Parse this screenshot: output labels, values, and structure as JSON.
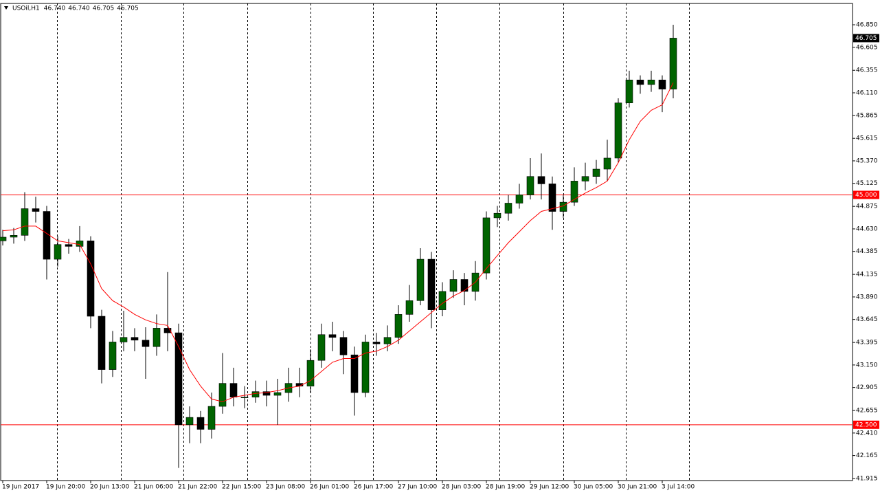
{
  "header": {
    "symbol": "USOil,H1",
    "quote": [
      "46.740",
      "46.740",
      "46.705",
      "46.705"
    ]
  },
  "chart_data": {
    "type": "candlestick",
    "up_color": "#006400",
    "down_color": "#000000",
    "ma_color": "#ff0000",
    "level_color": "#ff0000",
    "xlim": [
      -0.75,
      309.25
    ],
    "ylim": [
      41.893,
      47.082
    ],
    "yticks": [
      {
        "value": 46.85,
        "label": "46.850"
      },
      {
        "value": 46.605,
        "label": "46.605"
      },
      {
        "value": 46.355,
        "label": "46.355"
      },
      {
        "value": 46.11,
        "label": "46.110"
      },
      {
        "value": 45.865,
        "label": "45.865"
      },
      {
        "value": 45.615,
        "label": "45.615"
      },
      {
        "value": 45.37,
        "label": "45.370"
      },
      {
        "value": 45.125,
        "label": "45.125"
      },
      {
        "value": 44.875,
        "label": "44.875"
      },
      {
        "value": 44.63,
        "label": "44.630"
      },
      {
        "value": 44.385,
        "label": "44.385"
      },
      {
        "value": 44.135,
        "label": "44.135"
      },
      {
        "value": 43.89,
        "label": "43.890"
      },
      {
        "value": 43.645,
        "label": "43.645"
      },
      {
        "value": 43.395,
        "label": "43.395"
      },
      {
        "value": 43.15,
        "label": "43.150"
      },
      {
        "value": 42.905,
        "label": "42.905"
      },
      {
        "value": 42.655,
        "label": "42.655"
      },
      {
        "value": 42.41,
        "label": "42.410"
      },
      {
        "value": 42.165,
        "label": "42.165"
      },
      {
        "value": 41.915,
        "label": "41.915"
      }
    ],
    "xticks": [
      {
        "value": 0,
        "label": "19 Jun 2017"
      },
      {
        "value": 16,
        "label": "19 Jun 20:00"
      },
      {
        "value": 32,
        "label": "20 Jun 13:00"
      },
      {
        "value": 48,
        "label": "21 Jun 06:00"
      },
      {
        "value": 64,
        "label": "21 Jun 22:00"
      },
      {
        "value": 80,
        "label": "22 Jun 15:00"
      },
      {
        "value": 96,
        "label": "23 Jun 08:00"
      },
      {
        "value": 112,
        "label": "26 Jun 01:00"
      },
      {
        "value": 128,
        "label": "26 Jun 17:00"
      },
      {
        "value": 144,
        "label": "27 Jun 10:00"
      },
      {
        "value": 160,
        "label": "28 Jun 03:00"
      },
      {
        "value": 176,
        "label": "28 Jun 19:00"
      },
      {
        "value": 192,
        "label": "29 Jun 12:00"
      },
      {
        "value": 208,
        "label": "30 Jun 05:00"
      },
      {
        "value": 224,
        "label": "30 Jun 21:00"
      },
      {
        "value": 240,
        "label": "3 Jul 14:00"
      }
    ],
    "separators": [
      19.75,
      43,
      65.75,
      89,
      112,
      134.75,
      157.75,
      180.75,
      204,
      226.75,
      249.75
    ],
    "x": [
      0,
      4,
      8,
      12,
      16,
      20,
      24,
      28,
      32,
      36,
      40,
      44,
      48,
      52,
      56,
      60,
      64,
      68,
      72,
      76,
      80,
      84,
      88,
      92,
      96,
      100,
      104,
      108,
      112,
      116,
      120,
      124,
      128,
      132,
      136,
      140,
      144,
      148,
      152,
      156,
      160,
      164,
      168,
      172,
      176,
      180,
      184,
      188,
      192,
      196,
      200,
      204,
      208,
      212,
      216,
      220,
      224,
      228,
      232,
      236,
      240,
      244
    ],
    "open": [
      44.5,
      44.54,
      44.56,
      44.85,
      44.82,
      44.3,
      44.46,
      44.44,
      44.5,
      43.68,
      43.1,
      43.4,
      43.45,
      43.42,
      43.35,
      43.55,
      43.5,
      42.5,
      42.58,
      42.45,
      42.7,
      42.95,
      42.8,
      42.8,
      42.86,
      42.82,
      42.85,
      42.95,
      42.92,
      43.2,
      43.48,
      43.45,
      43.26,
      42.85,
      43.4,
      43.38,
      43.45,
      43.7,
      43.85,
      44.3,
      43.75,
      43.95,
      44.08,
      43.95,
      44.15,
      44.75,
      44.8,
      44.91,
      45.0,
      45.2,
      45.12,
      44.82,
      44.92,
      45.15,
      45.2,
      45.28,
      45.4,
      46.0,
      46.25,
      46.2,
      46.25,
      46.15
    ],
    "high": [
      44.62,
      44.64,
      45.03,
      44.98,
      44.88,
      44.55,
      44.52,
      44.66,
      44.55,
      43.75,
      43.52,
      43.74,
      43.55,
      43.56,
      43.7,
      44.16,
      43.6,
      42.7,
      42.65,
      42.85,
      43.28,
      43.12,
      42.92,
      42.98,
      42.98,
      43.0,
      43.12,
      43.12,
      43.32,
      43.6,
      43.62,
      43.52,
      43.35,
      43.48,
      43.5,
      43.58,
      43.8,
      44.02,
      44.42,
      44.38,
      44.05,
      44.18,
      44.15,
      44.28,
      44.82,
      44.88,
      45.0,
      45.12,
      45.4,
      45.45,
      45.2,
      45.0,
      45.3,
      45.35,
      45.38,
      45.6,
      46.05,
      46.35,
      46.3,
      46.35,
      46.3,
      46.85
    ],
    "low": [
      44.45,
      44.47,
      44.5,
      44.7,
      44.08,
      44.22,
      44.36,
      44.38,
      43.55,
      42.95,
      43.02,
      43.3,
      43.3,
      43.0,
      43.25,
      43.3,
      42.03,
      42.3,
      42.3,
      42.35,
      42.62,
      42.7,
      42.68,
      42.74,
      42.7,
      42.5,
      42.75,
      42.8,
      42.85,
      43.12,
      43.3,
      43.05,
      42.6,
      42.8,
      43.25,
      43.3,
      43.38,
      43.62,
      43.8,
      43.55,
      43.68,
      43.88,
      43.8,
      43.85,
      44.08,
      44.65,
      44.72,
      44.85,
      44.95,
      44.95,
      44.62,
      44.75,
      44.88,
      45.05,
      45.12,
      45.15,
      45.35,
      45.95,
      46.1,
      46.12,
      45.9,
      46.05
    ],
    "close": [
      44.54,
      44.56,
      44.85,
      44.82,
      44.3,
      44.46,
      44.44,
      44.5,
      43.68,
      43.1,
      43.4,
      43.45,
      43.42,
      43.35,
      43.55,
      43.5,
      42.5,
      42.58,
      42.45,
      42.7,
      42.95,
      42.8,
      42.8,
      42.86,
      42.82,
      42.85,
      42.95,
      42.92,
      43.2,
      43.48,
      43.45,
      43.26,
      42.85,
      43.4,
      43.38,
      43.45,
      43.7,
      43.85,
      44.3,
      43.75,
      43.95,
      44.08,
      43.95,
      44.15,
      44.75,
      44.8,
      44.91,
      45.0,
      45.2,
      45.12,
      44.82,
      44.92,
      45.15,
      45.2,
      45.28,
      45.4,
      46.0,
      46.25,
      46.2,
      46.25,
      46.15,
      46.705
    ],
    "ma": [
      44.61,
      44.62,
      44.66,
      44.66,
      44.58,
      44.5,
      44.48,
      44.46,
      44.25,
      43.98,
      43.85,
      43.78,
      43.7,
      43.64,
      43.6,
      43.58,
      43.35,
      43.1,
      42.92,
      42.78,
      42.75,
      42.8,
      42.82,
      42.84,
      42.85,
      42.87,
      42.9,
      42.92,
      42.98,
      43.08,
      43.18,
      43.22,
      43.22,
      43.28,
      43.3,
      43.35,
      43.42,
      43.52,
      43.62,
      43.72,
      43.82,
      43.9,
      43.96,
      44.05,
      44.2,
      44.34,
      44.48,
      44.6,
      44.72,
      44.82,
      44.85,
      44.88,
      44.95,
      45.02,
      45.08,
      45.15,
      45.35,
      45.6,
      45.8,
      45.92,
      45.98,
      46.22
    ],
    "levels": [
      {
        "value": 45.0,
        "label": "45.000"
      },
      {
        "value": 42.5,
        "label": "42.500"
      }
    ],
    "current": {
      "value": 46.705,
      "label": "46.705"
    }
  }
}
